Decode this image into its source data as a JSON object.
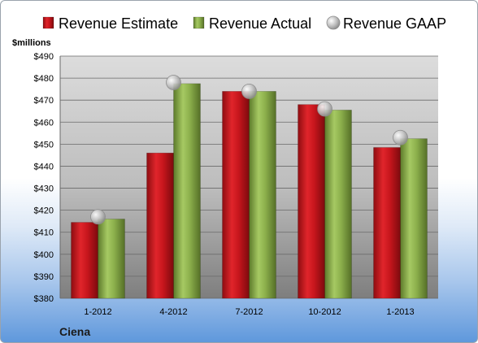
{
  "chart_data": {
    "type": "bar",
    "title": "",
    "xlabel": "",
    "ylabel": "$millions",
    "categories": [
      "1-2012",
      "4-2012",
      "7-2012",
      "10-2012",
      "1-2013"
    ],
    "series": [
      {
        "name": "Revenue Estimate",
        "kind": "bar",
        "color": "#c8161d",
        "values": [
          414.5,
          446,
          474,
          468,
          448.5
        ]
      },
      {
        "name": "Revenue Actual",
        "kind": "bar",
        "color": "#8cb04c",
        "values": [
          416,
          477.5,
          474,
          465.5,
          452.5
        ]
      },
      {
        "name": "Revenue GAAP",
        "kind": "marker",
        "color": "#c0c0c0",
        "values": [
          417,
          478,
          474,
          466,
          453
        ]
      }
    ],
    "ylim": [
      380,
      490
    ],
    "ytick_step": 10,
    "ytick_prefix": "$",
    "grid": true,
    "legend": "top"
  },
  "footer": {
    "company": "Ciena"
  }
}
